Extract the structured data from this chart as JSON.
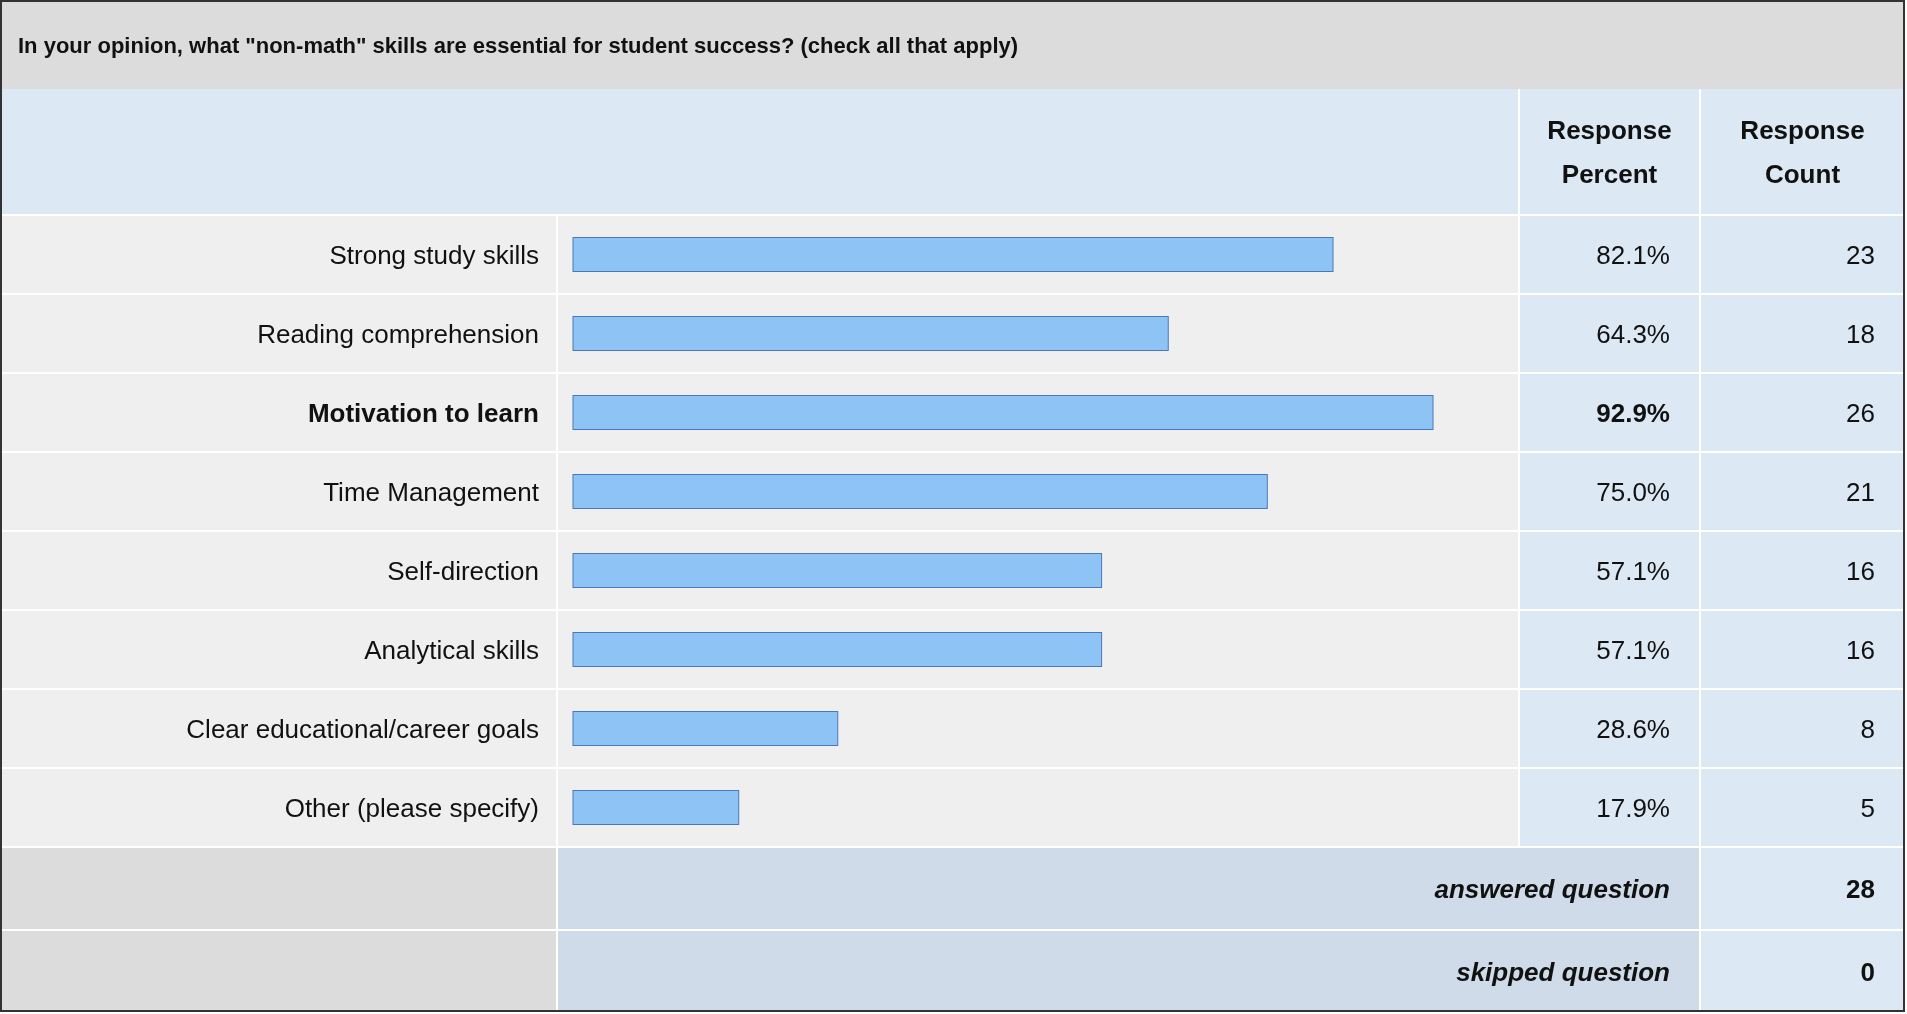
{
  "chart_data": {
    "type": "bar",
    "orientation": "horizontal",
    "title": "In your opinion, what \"non-math\" skills are essential for student success? (check all that apply)",
    "categories": [
      "Strong study skills",
      "Reading comprehension",
      "Motivation to learn",
      "Time Management",
      "Self-direction",
      "Analytical skills",
      "Clear educational/career goals",
      "Other (please specify)"
    ],
    "values": [
      82.1,
      64.3,
      92.9,
      75.0,
      57.1,
      57.1,
      28.6,
      17.9
    ],
    "value_labels": [
      "82.1%",
      "64.3%",
      "92.9%",
      "75.0%",
      "57.1%",
      "57.1%",
      "28.6%",
      "17.9%"
    ],
    "color": "#8ec3f5",
    "annotations": [
      {
        "text": "Response Percent"
      },
      {
        "text": "Response Count"
      },
      "23",
      "18",
      "26",
      "21",
      "16",
      "16",
      "8",
      "5",
      {
        "text": "answered question"
      },
      {
        "text": "28"
      },
      {
        "text": "skipped question"
      },
      {
        "text": "0"
      }
    ]
  }
}
